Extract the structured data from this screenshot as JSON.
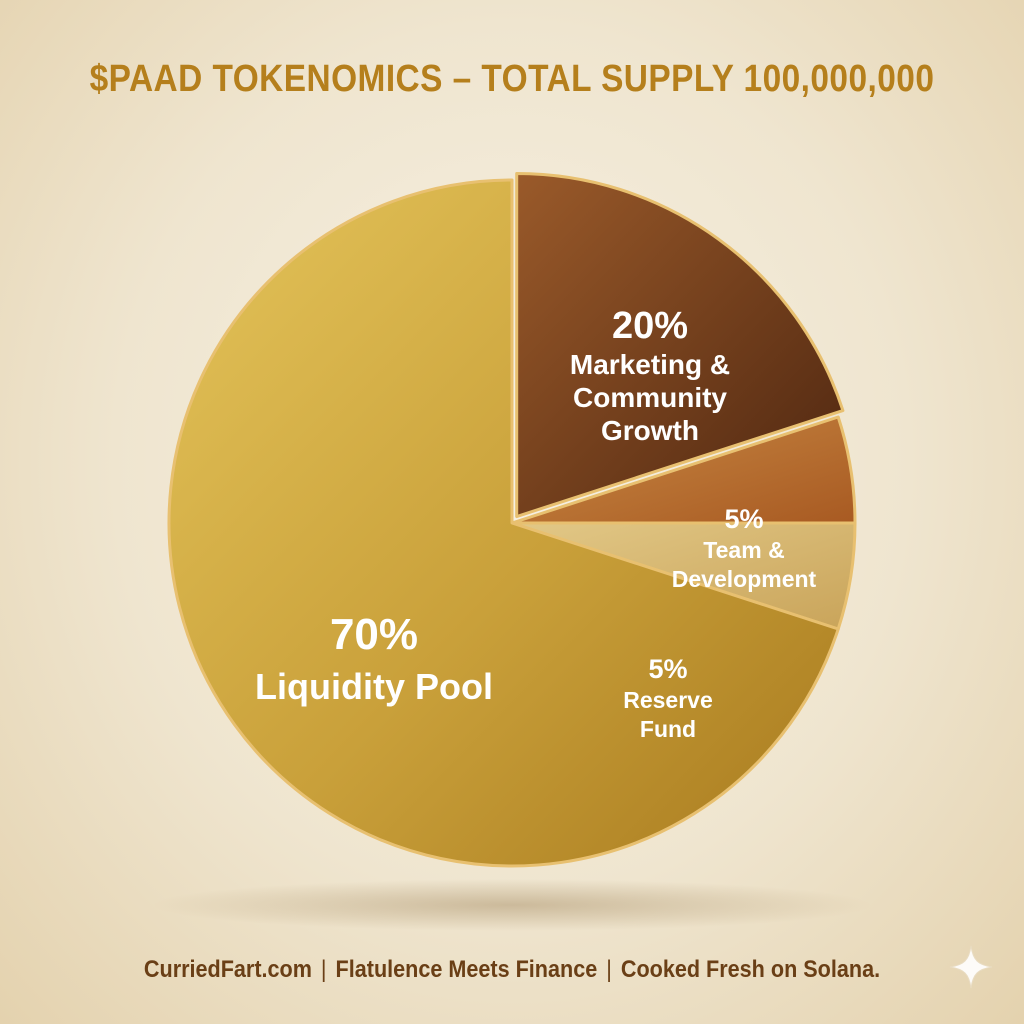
{
  "chart_data": {
    "type": "pie",
    "title": "$PAAD TOKENOMICS – TOTAL SUPPLY 100,000,000",
    "legend": "none",
    "slices": [
      {
        "value": 20,
        "pct_label": "20%",
        "label_lines": [
          "Marketing &",
          "Community",
          "Growth"
        ],
        "color": "#6e3a1a"
      },
      {
        "value": 5,
        "pct_label": "5%",
        "label_lines": [
          "Team &",
          "Development"
        ],
        "color": "#b46a2c"
      },
      {
        "value": 5,
        "pct_label": "5%",
        "label_lines": [
          "Reserve",
          "Fund"
        ],
        "color": "#d2b06a"
      },
      {
        "value": 70,
        "pct_label": "70%",
        "label_lines": [
          "Liquidity Pool"
        ],
        "color": "#c9a23a"
      }
    ]
  },
  "footer": {
    "site": "CurriedFart.com",
    "separator": "|",
    "tagline": "Flatulence Meets Finance",
    "closing": "Cooked Fresh on Solana."
  },
  "decor": {
    "corner_icon": "sparkle-icon"
  }
}
